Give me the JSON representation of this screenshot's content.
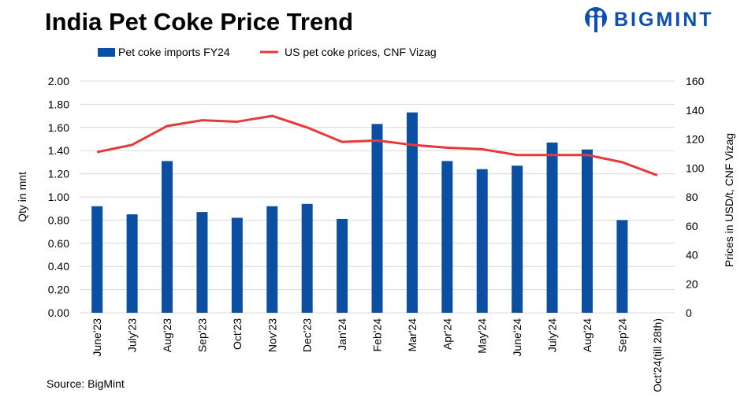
{
  "title": "India Pet Coke Price Trend",
  "logo": "BIGMINT",
  "source": "Source: BigMint",
  "colors": {
    "bar": "#0b4fa3",
    "line": "#e8393a",
    "grid": "#d9d9d9"
  },
  "chart_data": {
    "type": "bar+line",
    "title": "India Pet Coke Price Trend",
    "categories": [
      "June'23",
      "July'23",
      "Aug'23",
      "Sep'23",
      "Oct'23",
      "Nov'23",
      "Dec'23",
      "Jan'24",
      "Feb'24",
      "Mar'24",
      "Apr'24",
      "May'24",
      "June'24",
      "July'24",
      "Aug'24",
      "Sep'24",
      "Oct'24(till 28th)"
    ],
    "series": [
      {
        "name": "Pet coke imports FY24",
        "type": "bar",
        "axis": "left",
        "values": [
          0.92,
          0.85,
          1.31,
          0.87,
          0.82,
          0.92,
          0.94,
          0.81,
          1.63,
          1.73,
          1.31,
          1.24,
          1.27,
          1.47,
          1.41,
          0.8,
          null
        ]
      },
      {
        "name": "US pet coke prices, CNF Vizag",
        "type": "line",
        "axis": "right",
        "values": [
          111,
          116,
          129,
          133,
          132,
          136,
          128,
          118,
          119,
          116,
          114,
          113,
          109,
          109,
          109,
          104,
          95
        ]
      }
    ],
    "ylabel": "Qty in mnt",
    "ylim": [
      0,
      2
    ],
    "yticks": [
      "0.00",
      "0.20",
      "0.40",
      "0.60",
      "0.80",
      "1.00",
      "1.20",
      "1.40",
      "1.60",
      "1.80",
      "2.00"
    ],
    "y2label": "Prices in USD/t, CNF Vizag",
    "y2lim": [
      0,
      160
    ],
    "y2ticks": [
      "0",
      "20",
      "40",
      "60",
      "80",
      "100",
      "120",
      "140",
      "160"
    ],
    "grid": true,
    "legend": "top-left"
  }
}
